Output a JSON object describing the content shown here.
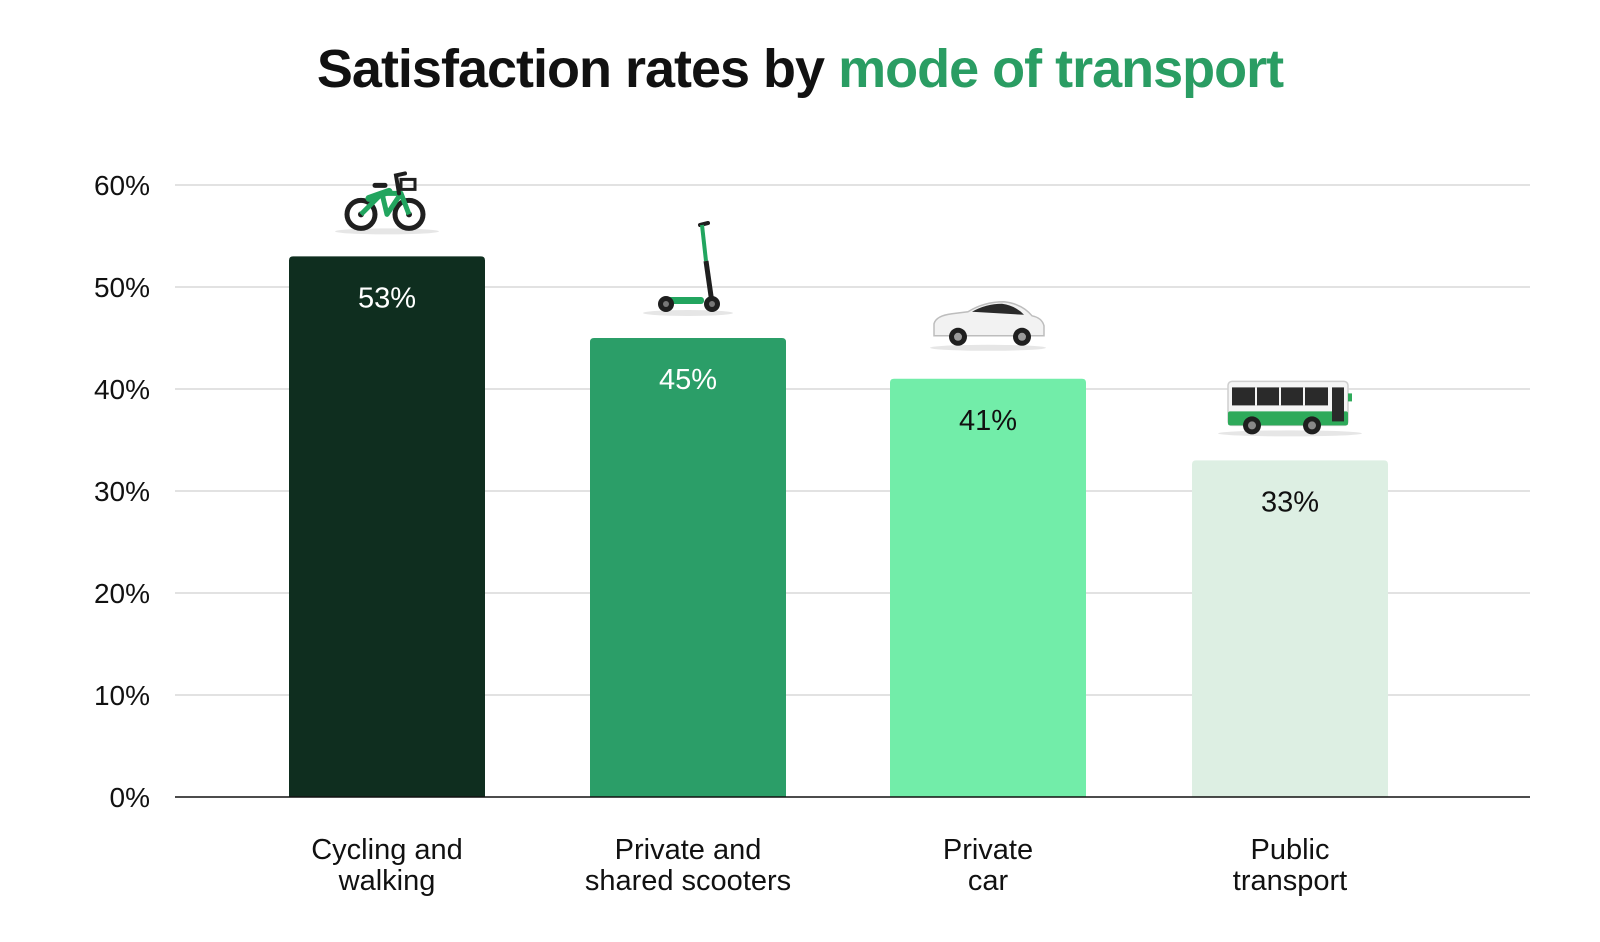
{
  "title": {
    "prefix": "Satisfaction rates by ",
    "highlight": "mode of transport"
  },
  "colors": {
    "title_accent": "#2a9d63",
    "gridline": "#d9d9d9",
    "axis": "#111111"
  },
  "chart_data": {
    "type": "bar",
    "categories": [
      [
        "Cycling and",
        "walking"
      ],
      [
        "Private and",
        "shared scooters"
      ],
      [
        "Private",
        "car"
      ],
      [
        "Public",
        "transport"
      ]
    ],
    "values": [
      53,
      45,
      41,
      33
    ],
    "data_labels": [
      "53%",
      "45%",
      "41%",
      "33%"
    ],
    "bar_colors": [
      "#0f2e1f",
      "#2b9e68",
      "#72eda9",
      "#ddefe3"
    ],
    "label_colors": [
      "#ffffff",
      "#ffffff",
      "#111111",
      "#111111"
    ],
    "icons": [
      "bicycle-icon",
      "scooter-icon",
      "car-icon",
      "bus-icon"
    ],
    "ylim": [
      0,
      60
    ],
    "yticks": [
      0,
      10,
      20,
      30,
      40,
      50,
      60
    ],
    "ytick_labels": [
      "0%",
      "10%",
      "20%",
      "30%",
      "40%",
      "50%",
      "60%"
    ],
    "grid": true,
    "legend": "none"
  }
}
